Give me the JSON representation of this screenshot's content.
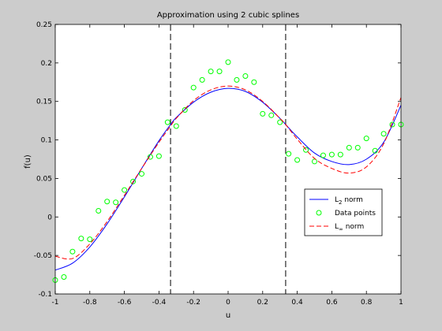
{
  "chart_data": {
    "type": "line",
    "title": "Approximation using 2 cubic splines",
    "xlabel": "u",
    "ylabel": "f(u)",
    "xlim": [
      -1,
      1
    ],
    "ylim": [
      -0.1,
      0.25
    ],
    "xticks": [
      "-1",
      "-0.8",
      "-0.6",
      "-0.4",
      "-0.2",
      "0",
      "0.2",
      "0.4",
      "0.6",
      "0.8",
      "1"
    ],
    "yticks": [
      "-0.1",
      "-0.05",
      "0",
      "0.05",
      "0.1",
      "0.15",
      "0.2",
      "0.25"
    ],
    "grid": false,
    "legend_position": "right",
    "knots": [
      -0.333,
      0.333
    ],
    "colors": {
      "l2": "#0000ff",
      "data": "#00ff00",
      "linf": "#ff0000",
      "knot": "#000000"
    },
    "series": [
      {
        "name": "L2 norm",
        "legend_main": "L",
        "legend_sub": "2",
        "legend_tail": " norm",
        "style": "solid",
        "x": [
          -1,
          -0.9,
          -0.8,
          -0.7,
          -0.6,
          -0.5,
          -0.4,
          -0.333,
          -0.3,
          -0.2,
          -0.1,
          0,
          0.1,
          0.2,
          0.3,
          0.333,
          0.4,
          0.5,
          0.6,
          0.7,
          0.8,
          0.9,
          1
        ],
        "y": [
          -0.069,
          -0.06,
          -0.039,
          -0.009,
          0.026,
          0.063,
          0.099,
          0.12,
          0.129,
          0.149,
          0.162,
          0.167,
          0.163,
          0.149,
          0.128,
          0.12,
          0.104,
          0.083,
          0.072,
          0.068,
          0.075,
          0.097,
          0.145
        ]
      },
      {
        "name": "Data points",
        "legend_main": "Data points",
        "style": "markers",
        "x": [
          -1,
          -0.95,
          -0.9,
          -0.85,
          -0.8,
          -0.75,
          -0.7,
          -0.65,
          -0.6,
          -0.55,
          -0.5,
          -0.45,
          -0.4,
          -0.35,
          -0.3,
          -0.25,
          -0.2,
          -0.15,
          -0.1,
          -0.05,
          0,
          0.05,
          0.1,
          0.15,
          0.2,
          0.25,
          0.3,
          0.35,
          0.4,
          0.45,
          0.5,
          0.55,
          0.6,
          0.65,
          0.7,
          0.75,
          0.8,
          0.85,
          0.9,
          0.95,
          1
        ],
        "y": [
          -0.082,
          -0.078,
          -0.045,
          -0.028,
          -0.029,
          0.008,
          0.02,
          0.019,
          0.035,
          0.046,
          0.056,
          0.078,
          0.079,
          0.123,
          0.118,
          0.139,
          0.168,
          0.178,
          0.189,
          0.189,
          0.201,
          0.178,
          0.183,
          0.175,
          0.134,
          0.132,
          0.123,
          0.082,
          0.074,
          0.087,
          0.072,
          0.08,
          0.081,
          0.081,
          0.09,
          0.09,
          0.102,
          0.086,
          0.108,
          0.12,
          0.12
        ]
      },
      {
        "name": "L∞ norm",
        "legend_main": "L",
        "legend_sub": "∞",
        "legend_tail": " norm",
        "style": "dashed",
        "x": [
          -1,
          -0.9,
          -0.8,
          -0.7,
          -0.6,
          -0.5,
          -0.4,
          -0.333,
          -0.3,
          -0.2,
          -0.1,
          0,
          0.1,
          0.2,
          0.3,
          0.333,
          0.4,
          0.5,
          0.6,
          0.7,
          0.8,
          0.9,
          1
        ],
        "y": [
          -0.051,
          -0.054,
          -0.035,
          -0.006,
          0.028,
          0.063,
          0.097,
          0.118,
          0.128,
          0.151,
          0.165,
          0.17,
          0.165,
          0.15,
          0.128,
          0.12,
          0.101,
          0.076,
          0.063,
          0.057,
          0.065,
          0.095,
          0.155
        ]
      }
    ]
  }
}
